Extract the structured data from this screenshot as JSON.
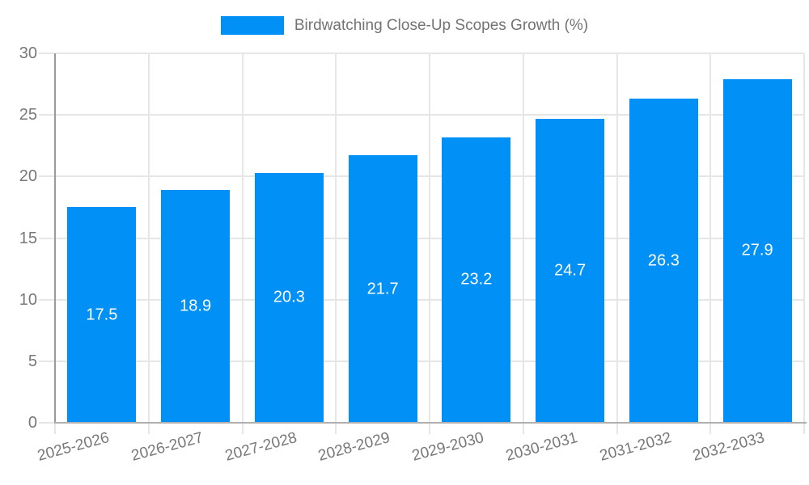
{
  "chart_data": {
    "type": "bar",
    "title": "Birdwatching Close-Up Scopes Growth (%)",
    "categories": [
      "2025-2026",
      "2026-2027",
      "2027-2028",
      "2028-2029",
      "2029-2030",
      "2030-2031",
      "2031-2032",
      "2032-2033"
    ],
    "values": [
      17.5,
      18.9,
      20.3,
      21.7,
      23.2,
      24.7,
      26.3,
      27.9
    ],
    "value_labels": [
      "17.5",
      "18.9",
      "20.3",
      "21.7",
      "23.2",
      "24.7",
      "26.3",
      "27.9"
    ],
    "xlabel": "",
    "ylabel": "",
    "ylim": [
      0,
      30
    ],
    "yticks": [
      0,
      5,
      10,
      15,
      20,
      25,
      30
    ],
    "grid": true,
    "legend_position": "top-center",
    "value_label_position": "middle-of-bar",
    "xtick_label_rotation_deg": -15
  },
  "colors": {
    "bar": "#0190F5",
    "grid": "#E6E6E6",
    "axis_left": "#9A9A9A",
    "axis_bottom": "#B0B0B0",
    "tick_label": "#787878",
    "legend_text": "#737373",
    "value_label": "#FFFFFF",
    "background": "#FFFFFF"
  }
}
